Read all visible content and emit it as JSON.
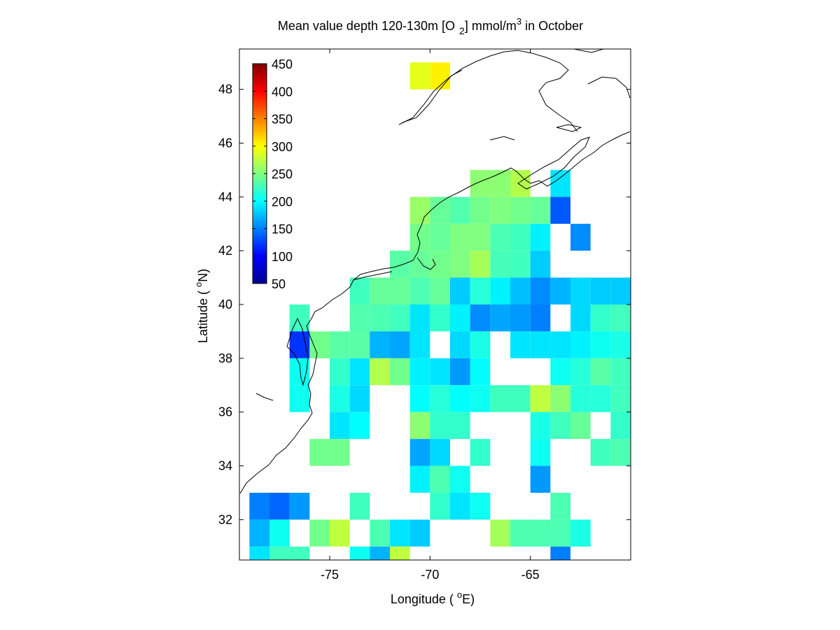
{
  "chart_data": {
    "type": "heatmap",
    "title": {
      "prefix": "Mean value depth 120-130m [O",
      "sub": "2",
      "mid": "] mmol/m",
      "sup": "3",
      "suffix": " in October"
    },
    "xlabel": {
      "prefix": "Longitude ( ",
      "sup": "o",
      "suffix": "E)"
    },
    "ylabel": {
      "prefix": "Latitude ( ",
      "sup": "o",
      "suffix": "N)"
    },
    "xlim": [
      -79.5,
      -60
    ],
    "ylim": [
      30.5,
      49.5
    ],
    "x_ticks": [
      -75,
      -70,
      -65
    ],
    "y_ticks": [
      32,
      34,
      36,
      38,
      40,
      42,
      44,
      46,
      48
    ],
    "colorbar": {
      "min": 50,
      "max": 450,
      "ticks": [
        450,
        400,
        350,
        300,
        250,
        200,
        150,
        100,
        50
      ],
      "colormap": "jet"
    },
    "cell_size_deg": 1,
    "cells": [
      {
        "lon": -71,
        "lat": 48,
        "value": 290
      },
      {
        "lon": -70,
        "lat": 48,
        "value": 305
      },
      {
        "lon": -68,
        "lat": 44,
        "value": 255
      },
      {
        "lon": -67,
        "lat": 44,
        "value": 255
      },
      {
        "lon": -66,
        "lat": 44,
        "value": 270
      },
      {
        "lon": -64,
        "lat": 44,
        "value": 190
      },
      {
        "lon": -71,
        "lat": 43,
        "value": 260
      },
      {
        "lon": -70,
        "lat": 43,
        "value": 240
      },
      {
        "lon": -69,
        "lat": 43,
        "value": 232
      },
      {
        "lon": -68,
        "lat": 43,
        "value": 245
      },
      {
        "lon": -67,
        "lat": 43,
        "value": 250
      },
      {
        "lon": -66,
        "lat": 43,
        "value": 245
      },
      {
        "lon": -65,
        "lat": 43,
        "value": 240
      },
      {
        "lon": -64,
        "lat": 43,
        "value": 135
      },
      {
        "lon": -71,
        "lat": 42,
        "value": 245
      },
      {
        "lon": -70,
        "lat": 42,
        "value": 240
      },
      {
        "lon": -69,
        "lat": 42,
        "value": 250
      },
      {
        "lon": -68,
        "lat": 42,
        "value": 250
      },
      {
        "lon": -67,
        "lat": 42,
        "value": 230
      },
      {
        "lon": -66,
        "lat": 42,
        "value": 225
      },
      {
        "lon": -65,
        "lat": 42,
        "value": 195
      },
      {
        "lon": -63,
        "lat": 42,
        "value": 155
      },
      {
        "lon": -72,
        "lat": 41,
        "value": 235
      },
      {
        "lon": -71,
        "lat": 41,
        "value": 240
      },
      {
        "lon": -70,
        "lat": 41,
        "value": 245
      },
      {
        "lon": -69,
        "lat": 41,
        "value": 250
      },
      {
        "lon": -68,
        "lat": 41,
        "value": 265
      },
      {
        "lon": -67,
        "lat": 41,
        "value": 228
      },
      {
        "lon": -66,
        "lat": 41,
        "value": 225
      },
      {
        "lon": -65,
        "lat": 41,
        "value": 180
      },
      {
        "lon": -74,
        "lat": 40,
        "value": 225
      },
      {
        "lon": -73,
        "lat": 40,
        "value": 240
      },
      {
        "lon": -72,
        "lat": 40,
        "value": 240
      },
      {
        "lon": -71,
        "lat": 40,
        "value": 230
      },
      {
        "lon": -70,
        "lat": 40,
        "value": 240
      },
      {
        "lon": -69,
        "lat": 40,
        "value": 180
      },
      {
        "lon": -68,
        "lat": 40,
        "value": 215
      },
      {
        "lon": -67,
        "lat": 40,
        "value": 195
      },
      {
        "lon": -66,
        "lat": 40,
        "value": 175
      },
      {
        "lon": -65,
        "lat": 40,
        "value": 155
      },
      {
        "lon": -64,
        "lat": 40,
        "value": 170
      },
      {
        "lon": -63,
        "lat": 40,
        "value": 185
      },
      {
        "lon": -62,
        "lat": 40,
        "value": 180
      },
      {
        "lon": -61,
        "lat": 40,
        "value": 180
      },
      {
        "lon": -77,
        "lat": 39,
        "value": 225
      },
      {
        "lon": -74,
        "lat": 39,
        "value": 232
      },
      {
        "lon": -73,
        "lat": 39,
        "value": 230
      },
      {
        "lon": -72,
        "lat": 39,
        "value": 225
      },
      {
        "lon": -71,
        "lat": 39,
        "value": 190
      },
      {
        "lon": -70,
        "lat": 39,
        "value": 220
      },
      {
        "lon": -69,
        "lat": 39,
        "value": 195
      },
      {
        "lon": -68,
        "lat": 39,
        "value": 155
      },
      {
        "lon": -67,
        "lat": 39,
        "value": 165
      },
      {
        "lon": -66,
        "lat": 39,
        "value": 160
      },
      {
        "lon": -65,
        "lat": 39,
        "value": 150
      },
      {
        "lon": -63,
        "lat": 39,
        "value": 185
      },
      {
        "lon": -62,
        "lat": 39,
        "value": 220
      },
      {
        "lon": -61,
        "lat": 39,
        "value": 225
      },
      {
        "lon": -77,
        "lat": 38,
        "value": 120
      },
      {
        "lon": -76,
        "lat": 38,
        "value": 245
      },
      {
        "lon": -75,
        "lat": 38,
        "value": 235
      },
      {
        "lon": -74,
        "lat": 38,
        "value": 235
      },
      {
        "lon": -73,
        "lat": 38,
        "value": 170
      },
      {
        "lon": -72,
        "lat": 38,
        "value": 165
      },
      {
        "lon": -71,
        "lat": 38,
        "value": 190
      },
      {
        "lon": -69,
        "lat": 38,
        "value": 185
      },
      {
        "lon": -68,
        "lat": 38,
        "value": 210
      },
      {
        "lon": -66,
        "lat": 38,
        "value": 190
      },
      {
        "lon": -65,
        "lat": 38,
        "value": 190
      },
      {
        "lon": -64,
        "lat": 38,
        "value": 190
      },
      {
        "lon": -63,
        "lat": 38,
        "value": 195
      },
      {
        "lon": -62,
        "lat": 38,
        "value": 205
      },
      {
        "lon": -61,
        "lat": 38,
        "value": 210
      },
      {
        "lon": -77,
        "lat": 37,
        "value": 205
      },
      {
        "lon": -75,
        "lat": 37,
        "value": 220
      },
      {
        "lon": -74,
        "lat": 37,
        "value": 190
      },
      {
        "lon": -73,
        "lat": 37,
        "value": 270
      },
      {
        "lon": -72,
        "lat": 37,
        "value": 245
      },
      {
        "lon": -71,
        "lat": 37,
        "value": 195
      },
      {
        "lon": -70,
        "lat": 37,
        "value": 190
      },
      {
        "lon": -69,
        "lat": 37,
        "value": 160
      },
      {
        "lon": -68,
        "lat": 37,
        "value": 200
      },
      {
        "lon": -64,
        "lat": 37,
        "value": 205
      },
      {
        "lon": -63,
        "lat": 37,
        "value": 215
      },
      {
        "lon": -62,
        "lat": 37,
        "value": 235
      },
      {
        "lon": -61,
        "lat": 37,
        "value": 225
      },
      {
        "lon": -77,
        "lat": 36,
        "value": 205
      },
      {
        "lon": -75,
        "lat": 36,
        "value": 210
      },
      {
        "lon": -74,
        "lat": 36,
        "value": 185
      },
      {
        "lon": -71,
        "lat": 36,
        "value": 200
      },
      {
        "lon": -70,
        "lat": 36,
        "value": 215
      },
      {
        "lon": -69,
        "lat": 36,
        "value": 200
      },
      {
        "lon": -68,
        "lat": 36,
        "value": 205
      },
      {
        "lon": -67,
        "lat": 36,
        "value": 225
      },
      {
        "lon": -66,
        "lat": 36,
        "value": 225
      },
      {
        "lon": -65,
        "lat": 36,
        "value": 275
      },
      {
        "lon": -64,
        "lat": 36,
        "value": 255
      },
      {
        "lon": -63,
        "lat": 36,
        "value": 215
      },
      {
        "lon": -62,
        "lat": 36,
        "value": 215
      },
      {
        "lon": -61,
        "lat": 36,
        "value": 225
      },
      {
        "lon": -75,
        "lat": 35,
        "value": 190
      },
      {
        "lon": -74,
        "lat": 35,
        "value": 200
      },
      {
        "lon": -71,
        "lat": 35,
        "value": 255
      },
      {
        "lon": -70,
        "lat": 35,
        "value": 220
      },
      {
        "lon": -69,
        "lat": 35,
        "value": 220
      },
      {
        "lon": -65,
        "lat": 35,
        "value": 210
      },
      {
        "lon": -64,
        "lat": 35,
        "value": 225
      },
      {
        "lon": -63,
        "lat": 35,
        "value": 240
      },
      {
        "lon": -61,
        "lat": 35,
        "value": 220
      },
      {
        "lon": -76,
        "lat": 34,
        "value": 245
      },
      {
        "lon": -75,
        "lat": 34,
        "value": 245
      },
      {
        "lon": -71,
        "lat": 34,
        "value": 165
      },
      {
        "lon": -70,
        "lat": 34,
        "value": 185
      },
      {
        "lon": -68,
        "lat": 34,
        "value": 220
      },
      {
        "lon": -65,
        "lat": 34,
        "value": 205
      },
      {
        "lon": -62,
        "lat": 34,
        "value": 225
      },
      {
        "lon": -61,
        "lat": 34,
        "value": 230
      },
      {
        "lon": -71,
        "lat": 33,
        "value": 195
      },
      {
        "lon": -70,
        "lat": 33,
        "value": 230
      },
      {
        "lon": -69,
        "lat": 33,
        "value": 205
      },
      {
        "lon": -65,
        "lat": 33,
        "value": 160
      },
      {
        "lon": -79,
        "lat": 32,
        "value": 150
      },
      {
        "lon": -78,
        "lat": 32,
        "value": 140
      },
      {
        "lon": -77,
        "lat": 32,
        "value": 160
      },
      {
        "lon": -74,
        "lat": 32,
        "value": 225
      },
      {
        "lon": -70,
        "lat": 32,
        "value": 220
      },
      {
        "lon": -69,
        "lat": 32,
        "value": 190
      },
      {
        "lon": -68,
        "lat": 32,
        "value": 205
      },
      {
        "lon": -64,
        "lat": 32,
        "value": 230
      },
      {
        "lon": -79,
        "lat": 31,
        "value": 170
      },
      {
        "lon": -78,
        "lat": 31,
        "value": 205
      },
      {
        "lon": -76,
        "lat": 31,
        "value": 245
      },
      {
        "lon": -75,
        "lat": 31,
        "value": 275
      },
      {
        "lon": -73,
        "lat": 31,
        "value": 230
      },
      {
        "lon": -72,
        "lat": 31,
        "value": 190
      },
      {
        "lon": -71,
        "lat": 31,
        "value": 180
      },
      {
        "lon": -67,
        "lat": 31,
        "value": 265
      },
      {
        "lon": -66,
        "lat": 31,
        "value": 230
      },
      {
        "lon": -65,
        "lat": 31,
        "value": 230
      },
      {
        "lon": -64,
        "lat": 31,
        "value": 230
      },
      {
        "lon": -63,
        "lat": 31,
        "value": 210
      },
      {
        "lon": -79,
        "lat": 30,
        "value": 190
      },
      {
        "lon": -78,
        "lat": 30,
        "value": 225
      },
      {
        "lon": -77,
        "lat": 30,
        "value": 225
      },
      {
        "lon": -74,
        "lat": 30,
        "value": 205
      },
      {
        "lon": -73,
        "lat": 30,
        "value": 170
      },
      {
        "lon": -72,
        "lat": 30,
        "value": 275
      },
      {
        "lon": -64,
        "lat": 30,
        "value": 150
      }
    ]
  }
}
